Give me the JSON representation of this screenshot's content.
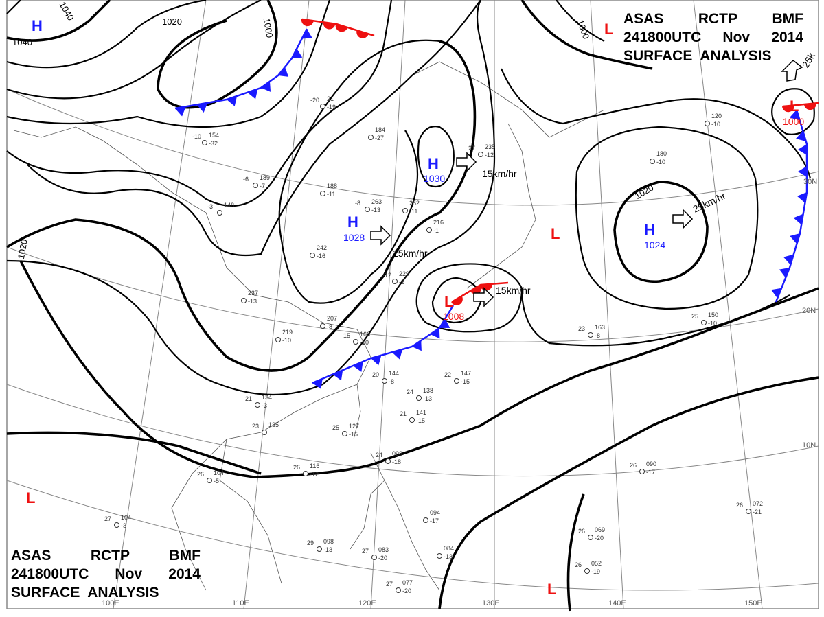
{
  "header": {
    "line1": [
      "ASAS",
      "RCTP",
      "BMF"
    ],
    "line2": [
      "241800UTC",
      "Nov",
      "2014"
    ],
    "line3": "SURFACE  ANALYSIS"
  },
  "colors": {
    "high": "#1a1aff",
    "low": "#ee1111",
    "cold_front": "#1a1aff",
    "warm_front": "#ee1111"
  },
  "longitude_labels": [
    "100E",
    "110E",
    "120E",
    "130E",
    "140E",
    "150E"
  ],
  "latitude_labels": [
    "30N",
    "20N",
    "10N"
  ],
  "pressure_centers": [
    {
      "type": "H",
      "pressure": ""
    },
    {
      "type": "L",
      "pressure": ""
    },
    {
      "type": "H",
      "pressure": "1030"
    },
    {
      "type": "H",
      "pressure": "1028"
    },
    {
      "type": "L",
      "pressure": "1008"
    },
    {
      "type": "H",
      "pressure": "1024"
    },
    {
      "type": "L",
      "pressure": ""
    },
    {
      "type": "L",
      "pressure": "1000"
    },
    {
      "type": "L",
      "pressure": ""
    },
    {
      "type": "L",
      "pressure": ""
    }
  ],
  "isobar_labels": [
    "1040",
    "1040",
    "1020",
    "1000",
    "1000",
    "1020",
    "1020"
  ],
  "movement_labels": [
    "15km/hr",
    "15km/hr",
    "15km/hr",
    "25km/hr",
    "25k"
  ],
  "stations": [
    {
      "t": "27",
      "p": "235",
      "d": "-12"
    },
    {
      "t": "-8",
      "p": "263",
      "d": "-13"
    },
    {
      "t": "",
      "p": "252",
      "d": "-11"
    },
    {
      "t": "",
      "p": "242",
      "d": "-16"
    },
    {
      "t": "",
      "p": "237",
      "d": "-13"
    },
    {
      "t": "",
      "p": "207",
      "d": "-8"
    },
    {
      "t": "",
      "p": "219",
      "d": "-10"
    },
    {
      "t": "15",
      "p": "166",
      "d": "-10"
    },
    {
      "t": "20",
      "p": "144",
      "d": "-8"
    },
    {
      "t": "24",
      "p": "138",
      "d": "-13"
    },
    {
      "t": "21",
      "p": "141",
      "d": "-15"
    },
    {
      "t": "22",
      "p": "147",
      "d": "-15"
    },
    {
      "t": "23",
      "p": "163",
      "d": "-8"
    },
    {
      "t": "21",
      "p": "134",
      "d": "-3"
    },
    {
      "t": "23",
      "p": "135",
      "d": ""
    },
    {
      "t": "25",
      "p": "127",
      "d": "-15"
    },
    {
      "t": "26",
      "p": "116",
      "d": "-12"
    },
    {
      "t": "26",
      "p": "104",
      "d": "-5"
    },
    {
      "t": "27",
      "p": "104",
      "d": "-3"
    },
    {
      "t": "29",
      "p": "098",
      "d": "-13"
    },
    {
      "t": "27",
      "p": "083",
      "d": "-20"
    },
    {
      "t": "27",
      "p": "077",
      "d": "-20"
    },
    {
      "t": "24",
      "p": "098",
      "d": "-18"
    },
    {
      "t": "26",
      "p": "090",
      "d": "-17"
    },
    {
      "t": "26",
      "p": "069",
      "d": "-20"
    },
    {
      "t": "26",
      "p": "052",
      "d": "-19"
    },
    {
      "t": "26",
      "p": "072",
      "d": "-21"
    },
    {
      "t": "",
      "p": "094",
      "d": "-17"
    },
    {
      "t": "",
      "p": "084",
      "d": "-13"
    },
    {
      "t": "-12",
      "p": "229",
      "d": "-2"
    },
    {
      "t": "",
      "p": "216",
      "d": "-1"
    },
    {
      "t": "-10",
      "p": "154",
      "d": "-32"
    },
    {
      "t": "-6",
      "p": "189",
      "d": "-7"
    },
    {
      "t": "",
      "p": "188",
      "d": "-11"
    },
    {
      "t": "-3",
      "p": "148",
      "d": ""
    },
    {
      "t": "",
      "p": "184",
      "d": "-27"
    },
    {
      "t": "-20",
      "p": "21",
      "d": "-19"
    },
    {
      "t": "",
      "p": "120",
      "d": "-10"
    },
    {
      "t": "",
      "p": "180",
      "d": "-10"
    },
    {
      "t": "25",
      "p": "150",
      "d": "-10"
    }
  ]
}
